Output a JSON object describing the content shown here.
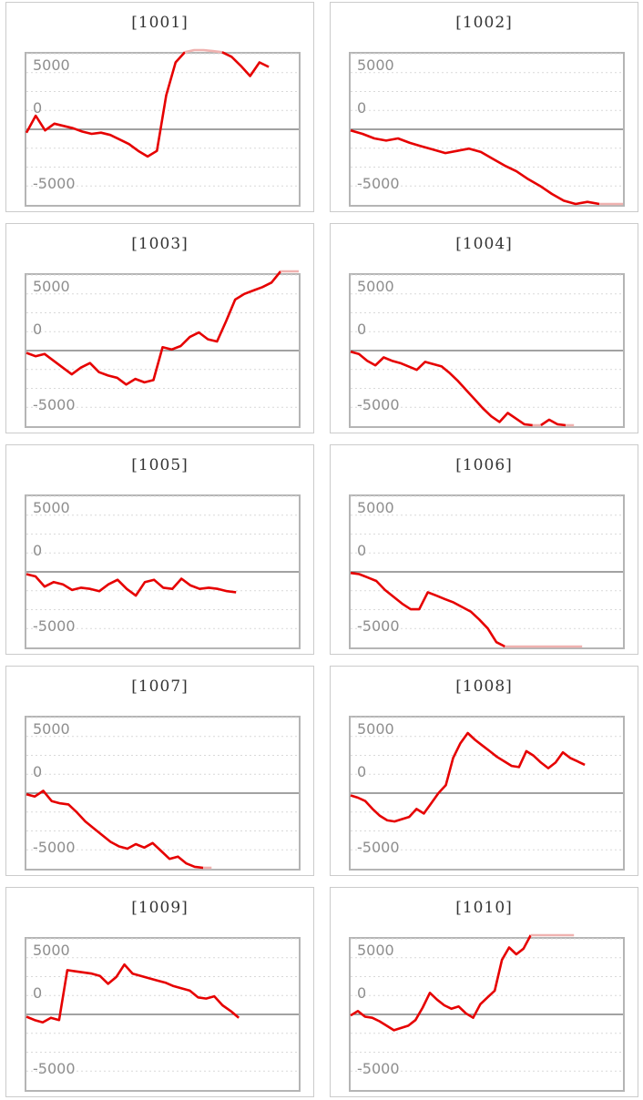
{
  "style": {
    "line_color": "#e60000",
    "clip_color": "#f0b2b0",
    "grid_color": "#d9d9d9",
    "zero_color": "#6b6b6b",
    "plot_border_color": "#b5b5b5",
    "panel_border_color": "#cbcbcb",
    "label_color": "#8e8e8e",
    "title_color": "#333333"
  },
  "axis": {
    "label_top": "5000",
    "label_mid": "0",
    "label_bottom": "-5000"
  },
  "chart_data": [
    {
      "type": "line",
      "title": "[1001]",
      "ylabels": [
        "5000",
        "0",
        "-5000"
      ],
      "ylim": [
        -6700,
        6700
      ],
      "grid": "dotted-horizontal",
      "legend": "none",
      "xend": 0.89,
      "values": [
        -300,
        1200,
        -100,
        500,
        300,
        100,
        -200,
        -400,
        -300,
        -500,
        -900,
        -1300,
        -1900,
        -2400,
        -1900,
        3000,
        5900,
        6800,
        7300,
        7300,
        6900,
        6800,
        6400,
        5600,
        4700,
        5900,
        5500
      ]
    },
    {
      "type": "line",
      "title": "[1002]",
      "ylabels": [
        "5000",
        "0",
        "-5000"
      ],
      "ylim": [
        -6700,
        6700
      ],
      "grid": "dotted-horizontal",
      "legend": "none",
      "xend": 1.0,
      "values": [
        -100,
        -400,
        -800,
        -1000,
        -800,
        -1200,
        -1500,
        -1800,
        -2100,
        -1900,
        -1700,
        -2000,
        -2600,
        -3200,
        -3700,
        -4400,
        -5000,
        -5700,
        -6300,
        -6600,
        -6400,
        -6700,
        -6700,
        -6700
      ]
    },
    {
      "type": "line",
      "title": "[1003]",
      "ylabels": [
        "5000",
        "0",
        "-5000"
      ],
      "ylim": [
        -6700,
        6700
      ],
      "grid": "dotted-horizontal",
      "legend": "none",
      "xend": 1.0,
      "values": [
        -200,
        -500,
        -300,
        -900,
        -1500,
        -2100,
        -1500,
        -1100,
        -1900,
        -2200,
        -2400,
        -3000,
        -2500,
        -2800,
        -2600,
        300,
        100,
        400,
        1200,
        1600,
        1000,
        800,
        2600,
        4500,
        5000,
        5300,
        5600,
        6000,
        7300,
        7300,
        7300
      ]
    },
    {
      "type": "line",
      "title": "[1004]",
      "ylabels": [
        "5000",
        "0",
        "-5000"
      ],
      "ylim": [
        -6700,
        6700
      ],
      "grid": "dotted-horizontal",
      "legend": "none",
      "xend": 0.82,
      "values": [
        -100,
        -300,
        -900,
        -1300,
        -600,
        -900,
        -1100,
        -1400,
        -1700,
        -1000,
        -1200,
        -1400,
        -2000,
        -2700,
        -3500,
        -4300,
        -5100,
        -5800,
        -6300,
        -5500,
        -6000,
        -6500,
        -6700,
        -6700,
        -6100,
        -6500,
        -6700,
        -6700
      ]
    },
    {
      "type": "line",
      "title": "[1005]",
      "ylabels": [
        "5000",
        "0",
        "-5000"
      ],
      "ylim": [
        -6700,
        6700
      ],
      "grid": "dotted-horizontal",
      "legend": "none",
      "xend": 0.77,
      "values": [
        -200,
        -400,
        -1300,
        -900,
        -1100,
        -1600,
        -1400,
        -1500,
        -1700,
        -1100,
        -700,
        -1500,
        -2100,
        -900,
        -700,
        -1400,
        -1500,
        -600,
        -1200,
        -1500,
        -1400,
        -1500,
        -1700,
        -1800
      ]
    },
    {
      "type": "line",
      "title": "[1006]",
      "ylabels": [
        "5000",
        "0",
        "-5000"
      ],
      "ylim": [
        -6700,
        6700
      ],
      "grid": "dotted-horizontal",
      "legend": "none",
      "xend": 0.85,
      "values": [
        -100,
        -200,
        -500,
        -800,
        -1600,
        -2200,
        -2800,
        -3300,
        -3300,
        -1800,
        -2100,
        -2400,
        -2700,
        -3100,
        -3500,
        -4200,
        -5000,
        -6200,
        -6700,
        -6700,
        -6700,
        -6700,
        -6700,
        -6700,
        -6700,
        -6700,
        -6700,
        -6700
      ]
    },
    {
      "type": "line",
      "title": "[1007]",
      "ylabels": [
        "5000",
        "0",
        "-5000"
      ],
      "ylim": [
        -6700,
        6700
      ],
      "grid": "dotted-horizontal",
      "legend": "none",
      "xend": 0.68,
      "values": [
        -100,
        -300,
        200,
        -700,
        -900,
        -1000,
        -1700,
        -2500,
        -3100,
        -3700,
        -4300,
        -4700,
        -4900,
        -4500,
        -4800,
        -4400,
        -5100,
        -5800,
        -5600,
        -6200,
        -6500,
        -6700,
        -6700
      ]
    },
    {
      "type": "line",
      "title": "[1008]",
      "ylabels": [
        "5000",
        "0",
        "-5000"
      ],
      "ylim": [
        -6700,
        6700
      ],
      "grid": "dotted-horizontal",
      "legend": "none",
      "xend": 0.86,
      "values": [
        -200,
        -400,
        -700,
        -1400,
        -2000,
        -2400,
        -2500,
        -2300,
        -2100,
        -1400,
        -1800,
        -900,
        0,
        700,
        3100,
        4400,
        5300,
        4700,
        4200,
        3700,
        3200,
        2800,
        2400,
        2300,
        3700,
        3300,
        2700,
        2200,
        2700,
        3600,
        3100,
        2800,
        2500
      ]
    },
    {
      "type": "line",
      "title": "[1009]",
      "ylabels": [
        "5000",
        "0",
        "-5000"
      ],
      "ylim": [
        -6700,
        6700
      ],
      "grid": "dotted-horizontal",
      "legend": "none",
      "xend": 0.78,
      "values": [
        -200,
        -500,
        -700,
        -300,
        -500,
        3900,
        3800,
        3700,
        3600,
        3400,
        2700,
        3300,
        4400,
        3600,
        3400,
        3200,
        3000,
        2800,
        2500,
        2300,
        2100,
        1500,
        1400,
        1600,
        800,
        300,
        -300
      ]
    },
    {
      "type": "line",
      "title": "[1010]",
      "ylabels": [
        "5000",
        "0",
        "-5000"
      ],
      "ylim": [
        -6700,
        6700
      ],
      "grid": "dotted-horizontal",
      "legend": "none",
      "xend": 0.82,
      "values": [
        -100,
        300,
        -200,
        -300,
        -600,
        -1000,
        -1400,
        -1200,
        -1000,
        -500,
        600,
        1900,
        1300,
        800,
        500,
        700,
        100,
        -300,
        900,
        1500,
        2100,
        4800,
        5900,
        5300,
        5800,
        7300,
        7300,
        7300,
        7300,
        7300,
        7300,
        7300
      ]
    }
  ]
}
